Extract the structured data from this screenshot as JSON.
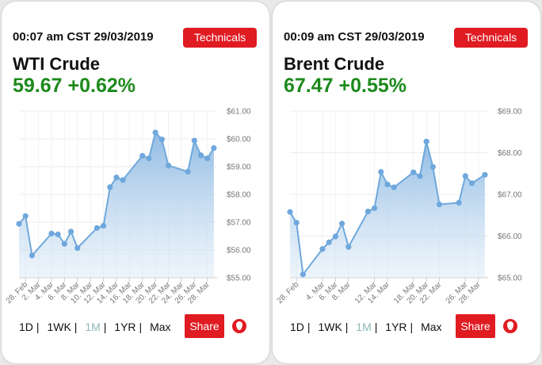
{
  "colors": {
    "accent": "#e01b22",
    "positive": "#1d8a1d",
    "line": "#6fa8dc",
    "active_range": "#8fb7b7"
  },
  "cards": [
    {
      "timestamp": "00:07 am CST 29/03/2019",
      "technicals_label": "Technicals",
      "name": "WTI Crude",
      "price_line": "59.67 +0.62%",
      "ranges": [
        "1D",
        "1WK",
        "1M",
        "1YR",
        "Max"
      ],
      "active_range": "1M",
      "share_label": "Share",
      "logo_icon": "oil-drop-icon"
    },
    {
      "timestamp": "00:09 am CST 29/03/2019",
      "technicals_label": "Technicals",
      "name": "Brent Crude",
      "price_line": "67.47 +0.55%",
      "ranges": [
        "1D",
        "1WK",
        "1M",
        "1YR",
        "Max"
      ],
      "active_range": "1M",
      "share_label": "Share",
      "logo_icon": "oil-drop-icon"
    }
  ],
  "chart_data": [
    {
      "type": "area",
      "title": "",
      "xlabel": "",
      "ylabel": "",
      "ylim": [
        55,
        61
      ],
      "yticks": [
        "$55.00",
        "$56.00",
        "$57.00",
        "$58.00",
        "$59.00",
        "$60.00",
        "$61.00"
      ],
      "xticks": [
        "28. Feb",
        "2. Mar",
        "4. Mar",
        "6. Mar",
        "8. Mar",
        "10. Mar",
        "12. Mar",
        "14. Mar",
        "16. Mar",
        "18. Mar",
        "20. Mar",
        "22. Mar",
        "24. Mar",
        "26. Mar",
        "28. Mar"
      ],
      "x": [
        "2019-02-27",
        "2019-02-28",
        "2019-03-01",
        "2019-03-04",
        "2019-03-05",
        "2019-03-06",
        "2019-03-07",
        "2019-03-08",
        "2019-03-11",
        "2019-03-12",
        "2019-03-13",
        "2019-03-14",
        "2019-03-15",
        "2019-03-18",
        "2019-03-19",
        "2019-03-20",
        "2019-03-21",
        "2019-03-22",
        "2019-03-25",
        "2019-03-26",
        "2019-03-27",
        "2019-03-28",
        "2019-03-29"
      ],
      "values": [
        56.94,
        57.22,
        55.8,
        56.59,
        56.56,
        56.22,
        56.66,
        56.07,
        56.79,
        56.87,
        58.26,
        58.61,
        58.52,
        59.39,
        59.3,
        60.23,
        59.98,
        59.04,
        58.82,
        59.94,
        59.41,
        59.3,
        59.67
      ],
      "grid": true
    },
    {
      "type": "area",
      "title": "",
      "xlabel": "",
      "ylabel": "",
      "ylim": [
        65,
        69
      ],
      "yticks": [
        "$65.00",
        "$66.00",
        "$67.00",
        "$68.00",
        "$69.00"
      ],
      "xticks": [
        "28. Feb",
        "4. Mar",
        "6. Mar",
        "8. Mar",
        "12. Mar",
        "14. Mar",
        "18. Mar",
        "20. Mar",
        "22. Mar",
        "26. Mar",
        "28. Mar"
      ],
      "x": [
        "2019-02-27",
        "2019-02-28",
        "2019-03-01",
        "2019-03-04",
        "2019-03-05",
        "2019-03-06",
        "2019-03-07",
        "2019-03-08",
        "2019-03-11",
        "2019-03-12",
        "2019-03-13",
        "2019-03-14",
        "2019-03-15",
        "2019-03-18",
        "2019-03-19",
        "2019-03-20",
        "2019-03-21",
        "2019-03-22",
        "2019-03-25",
        "2019-03-26",
        "2019-03-27",
        "2019-03-29"
      ],
      "values": [
        66.58,
        66.32,
        65.08,
        65.69,
        65.85,
        65.99,
        66.3,
        65.74,
        66.59,
        66.67,
        67.54,
        67.24,
        67.17,
        67.53,
        67.44,
        68.27,
        67.66,
        66.76,
        66.8,
        67.44,
        67.27,
        67.47
      ],
      "grid": true
    }
  ]
}
